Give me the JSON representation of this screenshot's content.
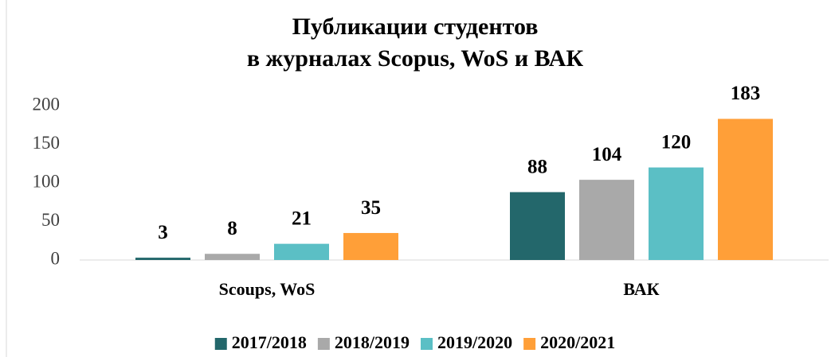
{
  "chart_data": {
    "type": "bar",
    "title": [
      "Публикации студентов",
      "в журналах Scopus, WoS и ВАК"
    ],
    "categories": [
      "Scoups, WoS",
      "ВАК"
    ],
    "series": [
      {
        "name": "2017/2018",
        "color": "#23676b",
        "values": [
          3,
          88
        ]
      },
      {
        "name": "2018/2019",
        "color": "#a9a9a9",
        "values": [
          8,
          104
        ]
      },
      {
        "name": "2019/2020",
        "color": "#5bbfc5",
        "values": [
          21,
          120
        ]
      },
      {
        "name": "2020/2021",
        "color": "#ff9f38",
        "values": [
          35,
          183
        ]
      }
    ],
    "ylim": [
      0,
      200
    ],
    "yticks": [
      0,
      50,
      100,
      150,
      200
    ],
    "grid": false,
    "legend": "bottom"
  }
}
